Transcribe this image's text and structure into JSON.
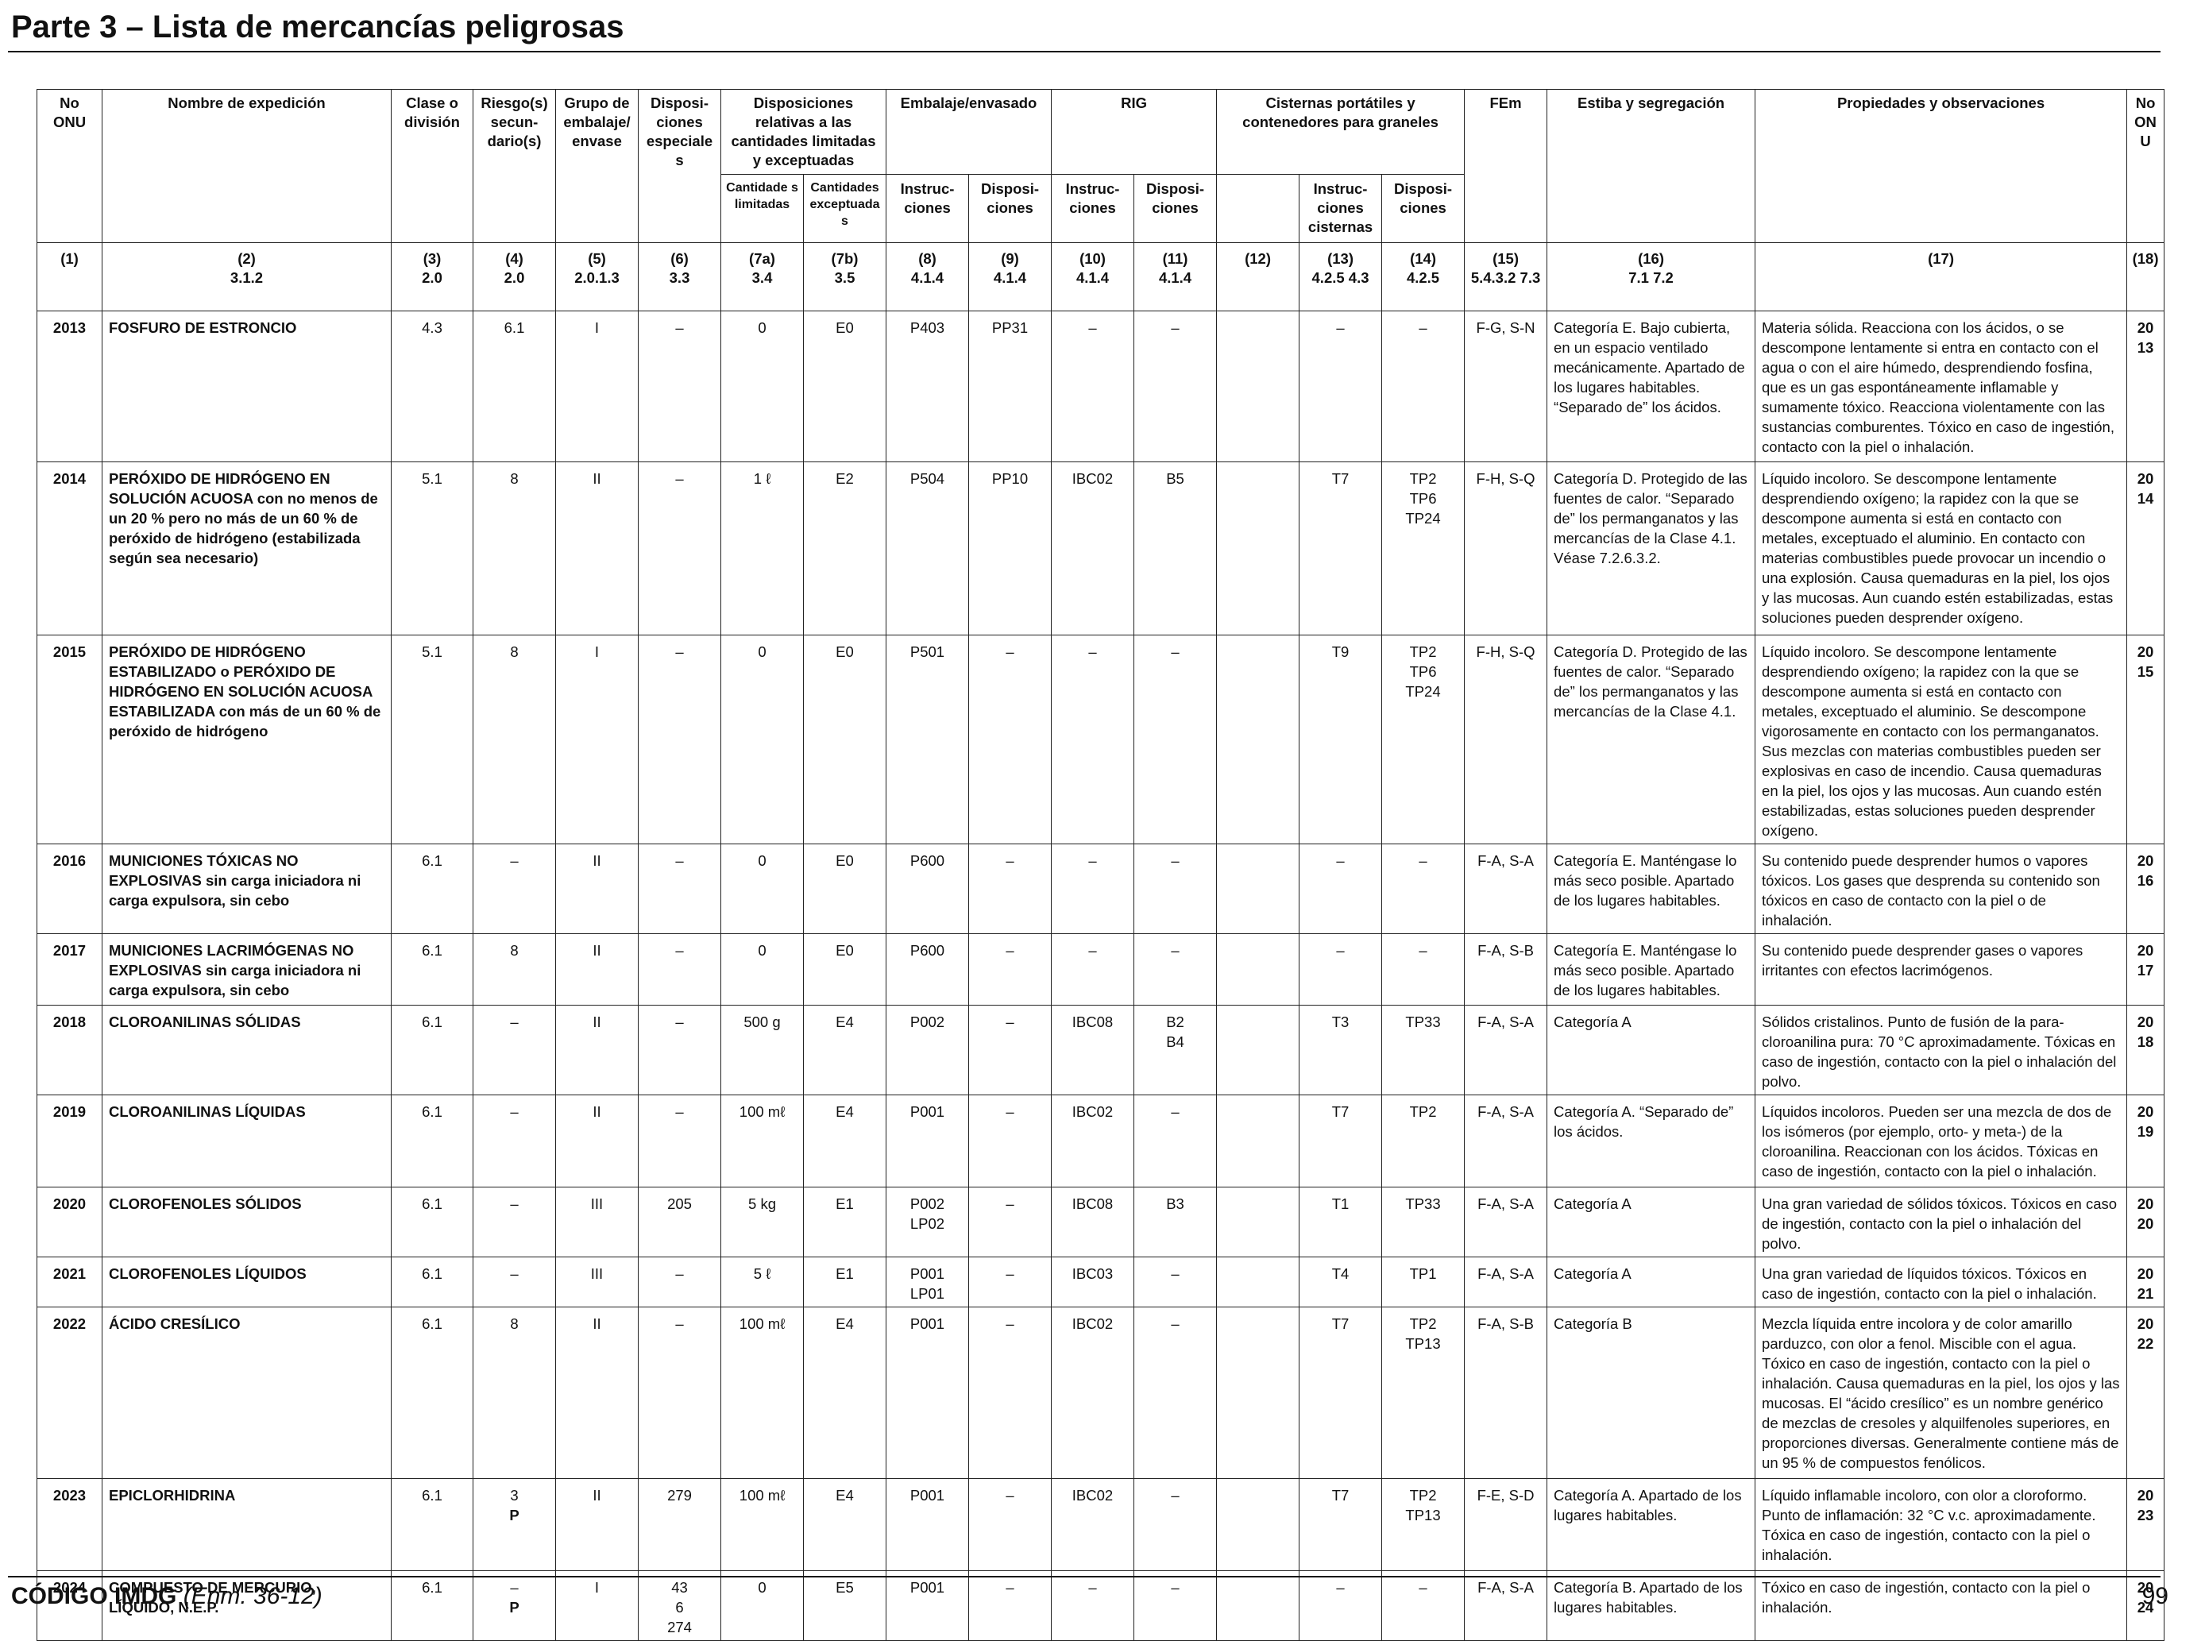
{
  "page_header": "Parte 3 – Lista de mercancías peligrosas",
  "footer": {
    "code": "CÓDIGO IMDG",
    "amendment": "(Enm. 36-12)",
    "page_number": "99"
  },
  "headers": {
    "un_no": "No ONU",
    "name": "Nombre de expedición",
    "class": "Clase o división",
    "subsidiary_risk": "Riesgo(s) secun- dario(s)",
    "packing_group": "Grupo de embalaje/ envase",
    "special_provisions": "Disposi- ciones especiales",
    "limited_excepted": "Disposiciones relativas a las cantidades limitadas y exceptuadas",
    "limited_quantities": "Cantidade s limitadas",
    "excepted_quantities": "Cantidades exceptuadas",
    "packing": "Embalaje/envasado",
    "packing_instructions": "Instruc- ciones",
    "packing_provisions": "Disposi- ciones",
    "ibc": "RIG",
    "ibc_instructions": "Instruc- ciones",
    "ibc_provisions": "Disposi- ciones",
    "tanks": "Cisternas portátiles y contenedores para graneles",
    "tank_instructions": "Instruc- ciones cisternas",
    "tank_provisions": "Disposi- ciones",
    "ems": "FEm",
    "stowage": "Estiba y segregación",
    "properties": "Propiedades y observaciones",
    "un_no_right": "No ONU"
  },
  "column_refs": [
    {
      "num": "(1)",
      "ref": ""
    },
    {
      "num": "(2)",
      "ref": "3.1.2"
    },
    {
      "num": "(3)",
      "ref": "2.0"
    },
    {
      "num": "(4)",
      "ref": "2.0"
    },
    {
      "num": "(5)",
      "ref": "2.0.1.3"
    },
    {
      "num": "(6)",
      "ref": "3.3"
    },
    {
      "num": "(7a)",
      "ref": "3.4"
    },
    {
      "num": "(7b)",
      "ref": "3.5"
    },
    {
      "num": "(8)",
      "ref": "4.1.4"
    },
    {
      "num": "(9)",
      "ref": "4.1.4"
    },
    {
      "num": "(10)",
      "ref": "4.1.4"
    },
    {
      "num": "(11)",
      "ref": "4.1.4"
    },
    {
      "num": "(12)",
      "ref": ""
    },
    {
      "num": "(13)",
      "ref": "4.2.5 4.3"
    },
    {
      "num": "(14)",
      "ref": "4.2.5"
    },
    {
      "num": "(15)",
      "ref": "5.4.3.2 7.3"
    },
    {
      "num": "(16)",
      "ref": "7.1 7.2"
    },
    {
      "num": "(17)",
      "ref": ""
    },
    {
      "num": "(18)",
      "ref": ""
    }
  ],
  "rows": [
    {
      "un": "2013",
      "name_bold": "FOSFURO DE ESTRONCIO",
      "name_rest": "",
      "class": "4.3",
      "sub_risk": "6.1",
      "sub_risk_p": "",
      "pg": "I",
      "sp": "–",
      "lq": "0",
      "eq": "E0",
      "pi": "P403",
      "pp": "PP31",
      "ibc": "–",
      "ibc_p": "–",
      "col12": "",
      "tank": "–",
      "tank_p": "–",
      "ems": "F-G, S-N",
      "stowage": "Categoría E. Bajo cubierta, en un espacio ventilado mecánicamente. Apartado de los lugares habitables. “Separado de” los ácidos.",
      "props": "Materia sólida. Reacciona con los ácidos, o se descompone lentamente si entra en contacto con el agua o con el aire húmedo, desprendiendo fosfina, que es un gas espontáneamente inflamable y sumamente tóxico. Reacciona violentamente con las sustancias comburentes. Tóxico en caso de ingestión, contacto con la piel o inhalación."
    },
    {
      "un": "2014",
      "name_bold": "PERÓXIDO DE HIDRÓGENO EN SOLUCIÓN ACUOSA",
      "name_rest": "con no menos de un 20 % pero no más de un 60 % de peróxido de hidrógeno (estabilizada según sea necesario)",
      "class": "5.1",
      "sub_risk": "8",
      "sub_risk_p": "",
      "pg": "II",
      "sp": "–",
      "lq": "1 ℓ",
      "eq": "E2",
      "pi": "P504",
      "pp": "PP10",
      "ibc": "IBC02",
      "ibc_p": "B5",
      "col12": "",
      "tank": "T7",
      "tank_p": "TP2 TP6 TP24",
      "ems": "F-H, S-Q",
      "stowage": "Categoría D. Protegido de las fuentes de calor. “Separado de” los permanganatos y las mercancías de la Clase 4.1. Véase 7.2.6.3.2.",
      "props": "Líquido incoloro. Se descompone lentamente desprendiendo oxígeno; la rapidez con la que se descompone aumenta si está en contacto con metales, exceptuado el aluminio. En contacto con materias combustibles puede provocar un incendio o una explosión. Causa quemaduras en la piel, los ojos y las mucosas. Aun cuando estén estabilizadas, estas soluciones pueden desprender oxígeno."
    },
    {
      "un": "2015",
      "name_bold": "PERÓXIDO DE HIDRÓGENO ESTABILIZADO o PERÓXIDO DE HIDRÓGENO EN SOLUCIÓN ACUOSA ESTABILIZADA",
      "name_rest": "con más de un 60 % de peróxido de hidrógeno",
      "class": "5.1",
      "sub_risk": "8",
      "sub_risk_p": "",
      "pg": "I",
      "sp": "–",
      "lq": "0",
      "eq": "E0",
      "pi": "P501",
      "pp": "–",
      "ibc": "–",
      "ibc_p": "–",
      "col12": "",
      "tank": "T9",
      "tank_p": "TP2 TP6 TP24",
      "ems": "F-H, S-Q",
      "stowage": "Categoría D. Protegido de las fuentes de calor. “Separado de” los permanganatos y las mercancías de la Clase 4.1.",
      "props": "Líquido incoloro. Se descompone lentamente desprendiendo oxígeno; la rapidez con la que se descompone aumenta si está en contacto con metales, exceptuado el aluminio. Se descompone vigorosamente en contacto con los permanganatos. Sus mezclas con materias combustibles pueden ser explosivas en caso de incendio. Causa quemaduras en la piel, los ojos y las mucosas. Aun cuando estén estabilizadas, estas soluciones pueden desprender oxígeno."
    },
    {
      "un": "2016",
      "name_bold": "MUNICIONES TÓXICAS NO EXPLOSIVAS",
      "name_rest": "sin carga iniciadora ni carga expulsora, sin cebo",
      "class": "6.1",
      "sub_risk": "–",
      "sub_risk_p": "",
      "pg": "II",
      "sp": "–",
      "lq": "0",
      "eq": "E0",
      "pi": "P600",
      "pp": "–",
      "ibc": "–",
      "ibc_p": "–",
      "col12": "",
      "tank": "–",
      "tank_p": "–",
      "ems": "F-A, S-A",
      "stowage": "Categoría E. Manténgase lo más seco posible. Apartado de los lugares habitables.",
      "props": "Su contenido puede desprender humos o vapores tóxicos. Los gases que desprenda su contenido son tóxicos en caso de contacto con la piel o de inhalación."
    },
    {
      "un": "2017",
      "name_bold": "MUNICIONES LACRIMÓGENAS NO EXPLOSIVAS",
      "name_rest": "sin carga iniciadora ni carga expulsora, sin cebo",
      "class": "6.1",
      "sub_risk": "8",
      "sub_risk_p": "",
      "pg": "II",
      "sp": "–",
      "lq": "0",
      "eq": "E0",
      "pi": "P600",
      "pp": "–",
      "ibc": "–",
      "ibc_p": "–",
      "col12": "",
      "tank": "–",
      "tank_p": "–",
      "ems": "F-A, S-B",
      "stowage": "Categoría E. Manténgase lo más seco posible. Apartado de los lugares habitables.",
      "props": "Su contenido puede desprender gases o vapores irritantes con efectos lacrimógenos."
    },
    {
      "un": "2018",
      "name_bold": "CLOROANILINAS SÓLIDAS",
      "name_rest": "",
      "class": "6.1",
      "sub_risk": "–",
      "sub_risk_p": "",
      "pg": "II",
      "sp": "–",
      "lq": "500 g",
      "eq": "E4",
      "pi": "P002",
      "pp": "–",
      "ibc": "IBC08",
      "ibc_p": "B2 B4",
      "col12": "",
      "tank": "T3",
      "tank_p": "TP33",
      "ems": "F-A, S-A",
      "stowage": "Categoría A",
      "props": "Sólidos cristalinos. Punto de fusión de la para-cloroanilina pura: 70 °C aproximadamente. Tóxicas en caso de ingestión, contacto con la piel o inhalación del polvo."
    },
    {
      "un": "2019",
      "name_bold": "CLOROANILINAS LÍQUIDAS",
      "name_rest": "",
      "class": "6.1",
      "sub_risk": "–",
      "sub_risk_p": "",
      "pg": "II",
      "sp": "–",
      "lq": "100 mℓ",
      "eq": "E4",
      "pi": "P001",
      "pp": "–",
      "ibc": "IBC02",
      "ibc_p": "–",
      "col12": "",
      "tank": "T7",
      "tank_p": "TP2",
      "ems": "F-A, S-A",
      "stowage": "Categoría A. “Separado de” los ácidos.",
      "props": "Líquidos incoloros. Pueden ser una mezcla de dos de los isómeros (por ejemplo, orto- y meta-) de la cloroanilina. Reaccionan con los ácidos. Tóxicas en caso de ingestión, contacto con la piel o inhalación."
    },
    {
      "un": "2020",
      "name_bold": "CLOROFENOLES SÓLIDOS",
      "name_rest": "",
      "class": "6.1",
      "sub_risk": "–",
      "sub_risk_p": "",
      "pg": "III",
      "sp": "205",
      "lq": "5 kg",
      "eq": "E1",
      "pi": "P002 LP02",
      "pp": "–",
      "ibc": "IBC08",
      "ibc_p": "B3",
      "col12": "",
      "tank": "T1",
      "tank_p": "TP33",
      "ems": "F-A, S-A",
      "stowage": "Categoría A",
      "props": "Una gran variedad de sólidos tóxicos. Tóxicos en caso de ingestión, contacto con la piel o inhalación del polvo."
    },
    {
      "un": "2021",
      "name_bold": "CLOROFENOLES LÍQUIDOS",
      "name_rest": "",
      "class": "6.1",
      "sub_risk": "–",
      "sub_risk_p": "",
      "pg": "III",
      "sp": "–",
      "lq": "5 ℓ",
      "eq": "E1",
      "pi": "P001 LP01",
      "pp": "–",
      "ibc": "IBC03",
      "ibc_p": "–",
      "col12": "",
      "tank": "T4",
      "tank_p": "TP1",
      "ems": "F-A, S-A",
      "stowage": "Categoría A",
      "props": "Una gran variedad de líquidos tóxicos. Tóxicos en caso de ingestión, contacto con la piel o inhalación."
    },
    {
      "un": "2022",
      "name_bold": "ÁCIDO CRESÍLICO",
      "name_rest": "",
      "class": "6.1",
      "sub_risk": "8",
      "sub_risk_p": "",
      "pg": "II",
      "sp": "–",
      "lq": "100 mℓ",
      "eq": "E4",
      "pi": "P001",
      "pp": "–",
      "ibc": "IBC02",
      "ibc_p": "–",
      "col12": "",
      "tank": "T7",
      "tank_p": "TP2 TP13",
      "ems": "F-A, S-B",
      "stowage": "Categoría B",
      "props": "Mezcla líquida entre incolora y de color amarillo parduzco, con olor a fenol. Miscible con el agua. Tóxico en caso de ingestión, contacto con la piel o inhalación. Causa quemaduras en la piel, los ojos y las mucosas. El “ácido cresílico” es un nombre genérico de mezclas de cresoles y alquilfenoles superiores, en proporciones diversas. Generalmente contiene más de un 95 % de compuestos fenólicos."
    },
    {
      "un": "2023",
      "name_bold": "EPICLORHIDRINA",
      "name_rest": "",
      "class": "6.1",
      "sub_risk": "3",
      "sub_risk_p": "P",
      "pg": "II",
      "sp": "279",
      "lq": "100 mℓ",
      "eq": "E4",
      "pi": "P001",
      "pp": "–",
      "ibc": "IBC02",
      "ibc_p": "–",
      "col12": "",
      "tank": "T7",
      "tank_p": "TP2 TP13",
      "ems": "F-E, S-D",
      "stowage": "Categoría A. Apartado de los lugares habitables.",
      "props": "Líquido inflamable incoloro, con olor a cloroformo. Punto de inflamación: 32 °C v.c. aproximadamente. Tóxica en caso de ingestión, contacto con la piel o inhalación."
    },
    {
      "un": "2024",
      "name_bold": "COMPUESTO DE MERCURIO, LÍQUIDO, N.E.P.",
      "name_rest": "",
      "class": "6.1",
      "sub_risk": "–",
      "sub_risk_p": "P",
      "pg": "I",
      "sp": "43 6 274",
      "lq": "0",
      "eq": "E5",
      "pi": "P001",
      "pp": "–",
      "ibc": "–",
      "ibc_p": "–",
      "col12": "",
      "tank": "–",
      "tank_p": "–",
      "ems": "F-A, S-A",
      "stowage": "Categoría B. Apartado de los lugares habitables.",
      "props": "Tóxico en caso de ingestión, contacto con la piel o inhalación."
    }
  ]
}
